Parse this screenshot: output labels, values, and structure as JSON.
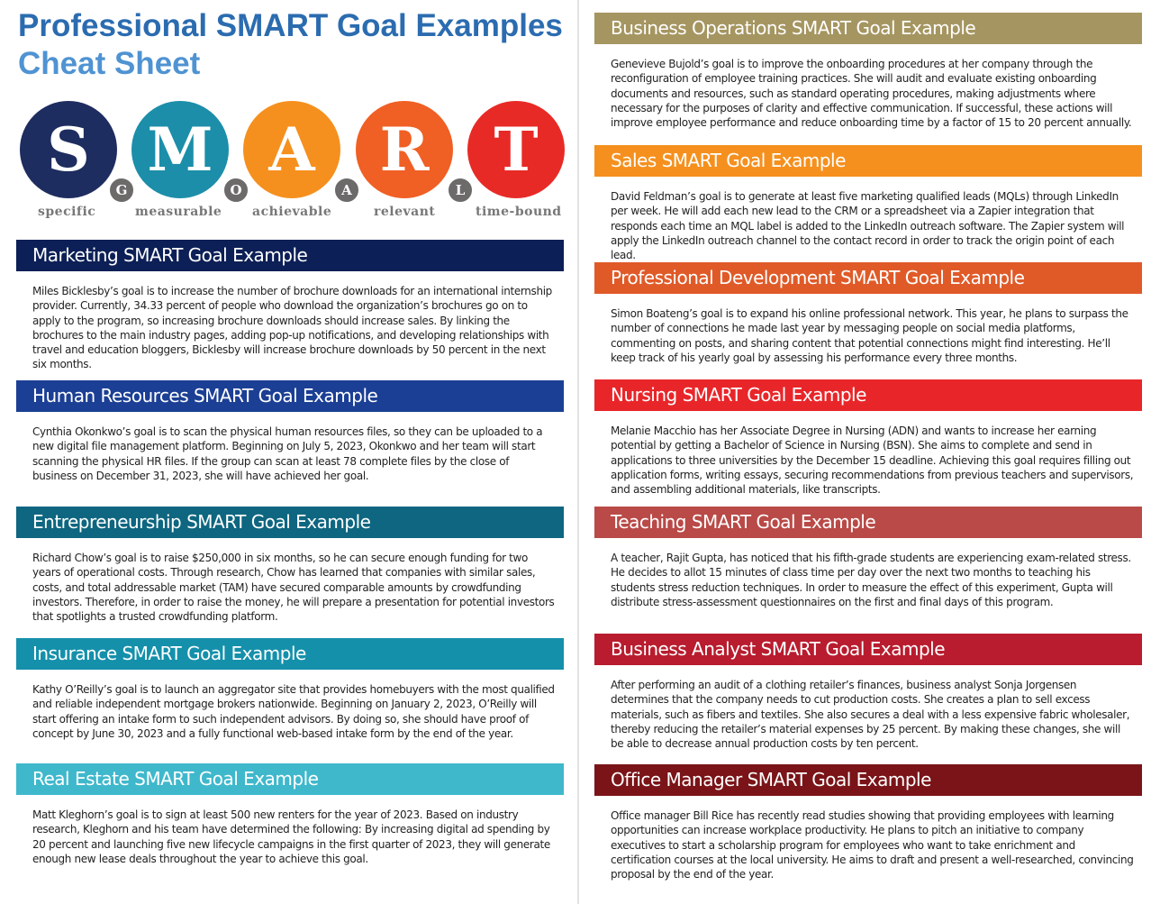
{
  "title": {
    "line1": "Professional SMART Goal Examples",
    "line2": "Cheat Sheet"
  },
  "smart": {
    "letters": [
      {
        "letter": "S",
        "word": "specific",
        "color": "#1e2d5f"
      },
      {
        "letter": "M",
        "word": "measurable",
        "color": "#1c8ea9"
      },
      {
        "letter": "A",
        "word": "achievable",
        "color": "#f5901e"
      },
      {
        "letter": "R",
        "word": "relevant",
        "color": "#f05f23"
      },
      {
        "letter": "T",
        "word": "time-bound",
        "color": "#e82a26"
      }
    ],
    "goal_letters": [
      "G",
      "O",
      "A",
      "L"
    ]
  },
  "sections": [
    {
      "title": "Marketing SMART Goal Example",
      "color": "#0c1f56",
      "text": "Miles Bicklesby’s goal is to increase the number of brochure downloads for an international internship provider. Currently, 34.33 percent of people who download the organization’s brochures go on to apply to the program, so increasing brochure downloads should increase sales. By linking the brochures to the main industry pages, adding pop-up notifications, and developing relationships with travel and education bloggers, Bicklesby will increase brochure downloads by 50 percent in the next six months."
    },
    {
      "title": "Human Resources SMART Goal Example",
      "color": "#1b3f94",
      "text": "Cynthia Okonkwo’s goal is to scan the physical human resources files, so they can be uploaded to a new digital file management platform. Beginning on July 5, 2023, Okonkwo and her team will start scanning the physical HR files. If the group can scan at least 78 complete files by the close of business on December 31, 2023, she will have achieved her goal."
    },
    {
      "title": "Entrepreneurship SMART Goal Example",
      "color": "#0e6680",
      "text": "Richard Chow’s goal is to raise $250,000 in six months, so he can secure enough funding for two years of operational costs. Through research, Chow has learned that companies with similar sales, costs, and total addressable market (TAM) have secured comparable amounts by crowdfunding investors. Therefore, in order to raise the money, he will prepare a presentation for potential investors that spotlights a trusted crowdfunding platform."
    },
    {
      "title": "Insurance SMART Goal Example",
      "color": "#1590ab",
      "text": "Kathy O’Reilly’s goal is to launch an aggregator site that provides homebuyers with the most qualified and reliable independent mortgage brokers nationwide. Beginning on January 2, 2023, O’Reilly will start offering an intake form to such independent advisors. By doing so, she should have proof of concept by June 30, 2023 and a fully functional web-based intake form by the end of the year."
    },
    {
      "title": "Real Estate SMART Goal Example",
      "color": "#3fb8cc",
      "text": "Matt Kleghorn’s goal is to sign at least 500 new renters for the year of 2023. Based on industry research, Kleghorn and his team have determined the following: By increasing digital ad spending by 20 percent and launching five new lifecycle campaigns in the first quarter of 2023, they will generate enough new lease deals throughout the year to achieve this goal."
    },
    {
      "title": "Business Operations SMART Goal Example",
      "color": "#a59560",
      "text": "Genevieve Bujold’s goal is to improve the onboarding procedures at her company through the reconfiguration of employee training practices. She will audit and evaluate existing onboarding documents and resources, such as standard operating procedures, making adjustments where necessary for the purposes of clarity and effective communication. If successful, these actions will improve employee performance and reduce onboarding time by a factor of 15 to 20 percent annually."
    },
    {
      "title": "Sales SMART Goal Example",
      "color": "#f5901e",
      "text": "David Feldman’s goal is to generate at least five marketing qualified leads (MQLs) through LinkedIn per week. He will add each new lead to the CRM or a spreadsheet via a Zapier integration that responds each time an MQL label is added to the LinkedIn outreach software. The Zapier system will apply the LinkedIn outreach channel to the contact record in order to track the origin point of each lead."
    },
    {
      "title": "Professional Development SMART Goal Example",
      "color": "#e05a28",
      "text": "Simon Boateng’s goal is to expand his online professional network. This year, he plans to surpass the number of connections he made last year by messaging people on social media platforms, commenting on posts, and sharing content that potential connections might find interesting. He’ll keep track of his yearly goal by assessing his performance every three months."
    },
    {
      "title": "Nursing SMART Goal Example",
      "color": "#e8262a",
      "text": "Melanie Macchio has her Associate Degree in Nursing (ADN) and wants to increase her earning potential by getting a Bachelor of Science in Nursing (BSN). She aims to complete and send in applications to three universities by the December 15 deadline. Achieving this goal requires filling out application forms, writing essays, securing recommendations from previous teachers and supervisors, and assembling additional materials, like transcripts."
    },
    {
      "title": "Teaching SMART Goal Example",
      "color": "#b94a47",
      "text": "A teacher, Rajit Gupta, has noticed that his fifth-grade students are experiencing exam-related stress. He decides to allot 15 minutes of class time per day over the next two months to teaching his students stress reduction techniques. In order to measure the effect of this experiment, Gupta will distribute stress-assessment questionnaires on the first and final days of this program."
    },
    {
      "title": "Business Analyst SMART Goal Example",
      "color": "#b81c2e",
      "text": "After performing an audit of a clothing retailer’s finances, business analyst Sonja Jorgensen determines that the company needs to cut production costs. She creates a plan to sell excess materials, such as fibers and textiles. She also secures a deal with a less expensive fabric wholesaler, thereby reducing the retailer’s material expenses by 25 percent. By making these changes, she will be able to decrease annual production costs by ten percent."
    },
    {
      "title": "Office Manager SMART Goal Example",
      "color": "#7a1418",
      "text": "Office manager Bill Rice has recently read studies showing that providing employees with learning opportunities can increase workplace productivity. He plans to pitch an initiative to company executives to start a scholarship program for employees who want to take enrichment and certification courses at the local university. He aims to draft and present a well-researched, convincing proposal by the end of the year."
    }
  ]
}
